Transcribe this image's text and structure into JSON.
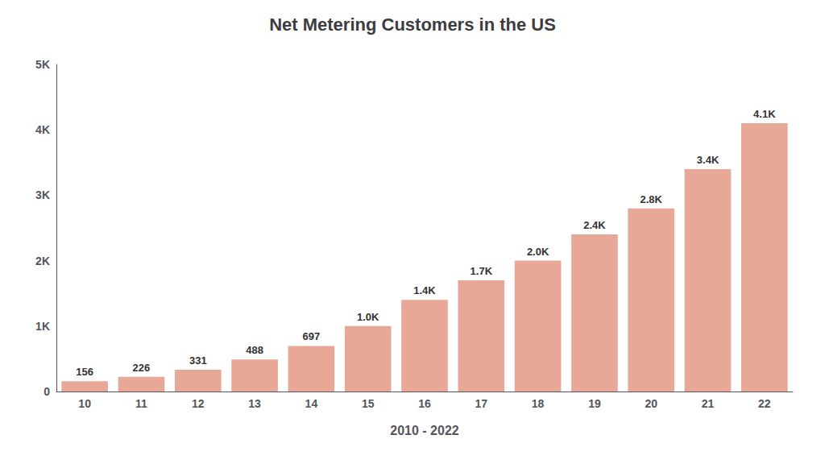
{
  "chart_data": {
    "type": "bar",
    "title": "Net Metering Customers in the US",
    "xlabel": "2010 - 2022",
    "categories": [
      "10",
      "11",
      "12",
      "13",
      "14",
      "15",
      "16",
      "17",
      "18",
      "19",
      "20",
      "21",
      "22"
    ],
    "values": [
      156,
      226,
      331,
      488,
      697,
      1000,
      1400,
      1700,
      2000,
      2400,
      2800,
      3400,
      4100
    ],
    "value_labels": [
      "156",
      "226",
      "331",
      "488",
      "697",
      "1.0K",
      "1.4K",
      "1.7K",
      "2.0K",
      "2.4K",
      "2.8K",
      "3.4K",
      "4.1K"
    ],
    "data_labels": true,
    "color": "#E8A898",
    "ylim": [
      0,
      5000
    ],
    "yticks": [
      0,
      {
        "value": 1000,
        "label": "1K"
      },
      {
        "value": 2000,
        "label": "2K"
      },
      {
        "value": 3000,
        "label": "3K"
      },
      {
        "value": 4000,
        "label": "4K"
      },
      {
        "value": 5000,
        "label": "5K"
      }
    ],
    "grid": false
  }
}
